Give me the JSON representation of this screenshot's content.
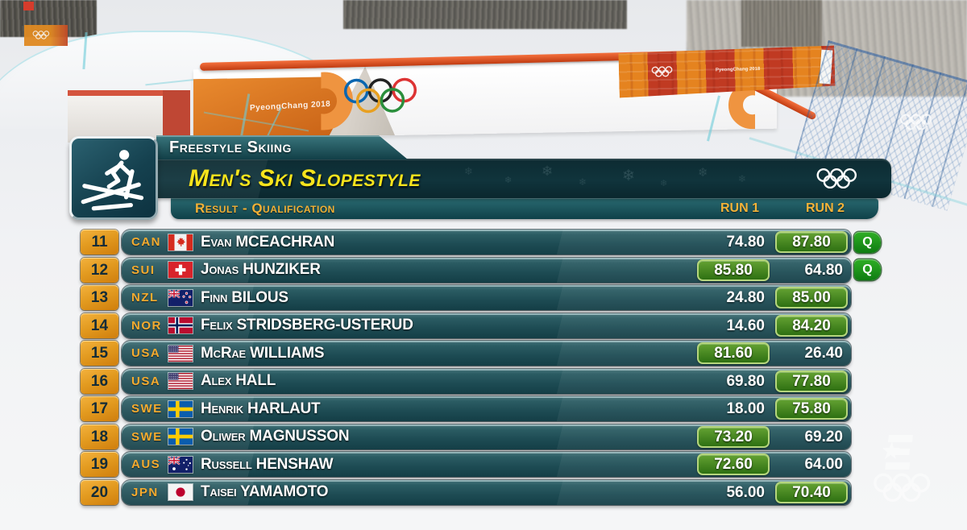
{
  "scoreboard": {
    "sport": "Freestyle Skiing",
    "title": "Men's Ski Slopestyle",
    "subtitle": "Result - Qualification",
    "columns": {
      "run1": "RUN 1",
      "run2": "RUN 2"
    },
    "qualified_label": "Q",
    "rows": [
      {
        "rank": "11",
        "noc": "CAN",
        "name": "Evan MCEACHRAN",
        "run1": "74.80",
        "run2": "87.80",
        "best_run": 2,
        "qualified": true
      },
      {
        "rank": "12",
        "noc": "SUI",
        "name": "Jonas HUNZIKER",
        "run1": "85.80",
        "run2": "64.80",
        "best_run": 1,
        "qualified": true
      },
      {
        "rank": "13",
        "noc": "NZL",
        "name": "Finn BILOUS",
        "run1": "24.80",
        "run2": "85.00",
        "best_run": 2,
        "qualified": false
      },
      {
        "rank": "14",
        "noc": "NOR",
        "name": "Felix STRIDSBERG-USTERUD",
        "run1": "14.60",
        "run2": "84.20",
        "best_run": 2,
        "qualified": false
      },
      {
        "rank": "15",
        "noc": "USA",
        "name": "McRae WILLIAMS",
        "run1": "81.60",
        "run2": "26.40",
        "best_run": 1,
        "qualified": false
      },
      {
        "rank": "16",
        "noc": "USA",
        "name": "Alex HALL",
        "run1": "69.80",
        "run2": "77.80",
        "best_run": 2,
        "qualified": false
      },
      {
        "rank": "17",
        "noc": "SWE",
        "name": "Henrik HARLAUT",
        "run1": "18.00",
        "run2": "75.80",
        "best_run": 2,
        "qualified": false
      },
      {
        "rank": "18",
        "noc": "SWE",
        "name": "Oliwer MAGNUSSON",
        "run1": "73.20",
        "run2": "69.20",
        "best_run": 1,
        "qualified": false
      },
      {
        "rank": "19",
        "noc": "AUS",
        "name": "Russell HENSHAW",
        "run1": "72.60",
        "run2": "64.00",
        "best_run": 1,
        "qualified": false
      },
      {
        "rank": "20",
        "noc": "JPN",
        "name": "Taisei YAMAMOTO",
        "run1": "56.00",
        "run2": "70.40",
        "best_run": 2,
        "qualified": false
      }
    ]
  },
  "background": {
    "banner_text": "PyeongChang 2018"
  },
  "colors": {
    "accent_orange": "#f0a830",
    "title_yellow": "#f8e41c",
    "row_teal": "#1d4b53",
    "header_dark": "#0d2b32",
    "best_green": "#3f8617",
    "q_green": "#23941f",
    "rail_orange": "#e05a26",
    "dye_cyan": "#6ccbd8"
  }
}
